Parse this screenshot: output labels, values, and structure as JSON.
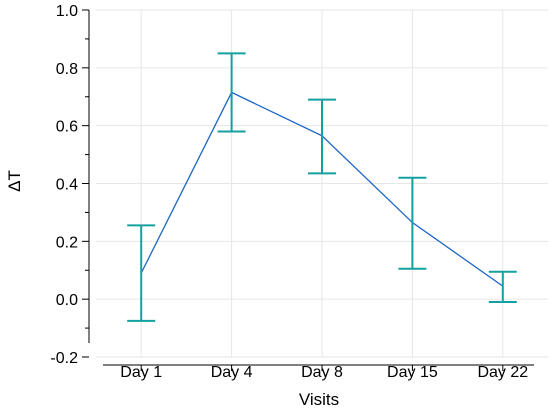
{
  "chart_data": {
    "type": "line",
    "title": "",
    "xlabel": "Visits",
    "ylabel": "ΔT",
    "categories": [
      "Day 1",
      "Day 4",
      "Day 8",
      "Day 15",
      "Day 22"
    ],
    "series": [
      {
        "values": [
          0.09,
          0.715,
          0.565,
          0.265,
          0.045
        ],
        "error_low": [
          -0.075,
          0.58,
          0.435,
          0.105,
          -0.01
        ],
        "error_high": [
          0.255,
          0.85,
          0.69,
          0.42,
          0.095
        ]
      }
    ],
    "ylim": [
      -0.2,
      1.0
    ],
    "yticks": [
      "-0.2",
      "0.0",
      "0.2",
      "0.4",
      "0.6",
      "0.8",
      "1.0"
    ],
    "grid": true,
    "legend": "none",
    "colors": {
      "line": "#1a66c8",
      "error_bar": "#14a0a0",
      "grid": "#e6e6e6",
      "axis": "#000000"
    }
  }
}
